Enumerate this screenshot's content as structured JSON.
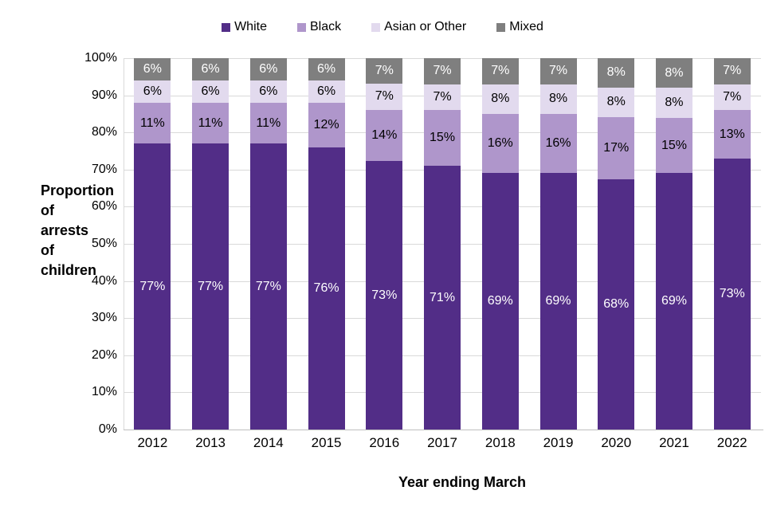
{
  "accent_colors": {
    "white_series": "#522d87",
    "black_series": "#af96cb",
    "asian_series": "#e2daee",
    "mixed_series": "#7f7f7f",
    "gridline": "#d9d9d9",
    "axis_line": "#bfbfbf"
  },
  "legend": {
    "items": [
      {
        "label": "White",
        "color": "#522d87"
      },
      {
        "label": "Black",
        "color": "#af96cb"
      },
      {
        "label": "Asian or Other",
        "color": "#e2daee"
      },
      {
        "label": "Mixed",
        "color": "#7f7f7f"
      }
    ]
  },
  "chart_data": {
    "type": "bar",
    "subtype": "stacked-percent-column",
    "title": "",
    "xlabel": "Year ending March",
    "ylabel": "Proportion of arrests of children",
    "categories": [
      "2012",
      "2013",
      "2014",
      "2015",
      "2016",
      "2017",
      "2018",
      "2019",
      "2020",
      "2021",
      "2022"
    ],
    "series": [
      {
        "name": "White",
        "color": "#522d87",
        "label_color": "#ffffff",
        "values": [
          77,
          77,
          77,
          76,
          73,
          71,
          69,
          69,
          68,
          69,
          73
        ]
      },
      {
        "name": "Black",
        "color": "#af96cb",
        "label_color": "#000000",
        "values": [
          11,
          11,
          11,
          12,
          14,
          15,
          16,
          16,
          17,
          15,
          13
        ]
      },
      {
        "name": "Asian or Other",
        "color": "#e2daee",
        "label_color": "#000000",
        "values": [
          6,
          6,
          6,
          6,
          7,
          7,
          8,
          8,
          8,
          8,
          7
        ]
      },
      {
        "name": "Mixed",
        "color": "#7f7f7f",
        "label_color": "#ffffff",
        "values": [
          6,
          6,
          6,
          6,
          7,
          7,
          7,
          7,
          8,
          8,
          7
        ]
      }
    ],
    "data_label_format": "{v}%",
    "y_ticks": [
      "0%",
      "10%",
      "20%",
      "30%",
      "40%",
      "50%",
      "60%",
      "70%",
      "80%",
      "90%",
      "100%"
    ],
    "ylim": [
      0,
      100
    ],
    "grid": true,
    "legend_position": "top"
  }
}
